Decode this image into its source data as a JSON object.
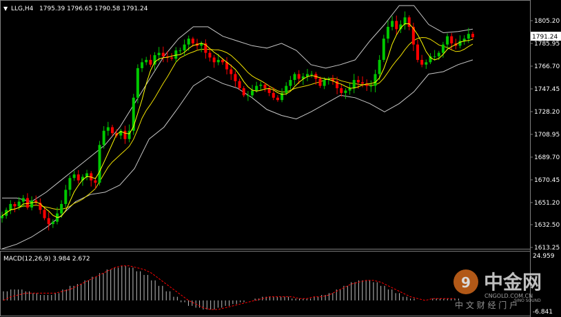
{
  "header": {
    "symbol_label": "LLG,H4",
    "ohlc_label": "1795.39 1796.65 1790.58 1791.24"
  },
  "macd_panel": {
    "label": "MACD(12,26,9) 3.984 2.672",
    "top_value": "24.959",
    "bottom_value": "-6.841"
  },
  "current_price_label": "1791.24",
  "watermark": {
    "brand": "中金网",
    "domain": "CNGOLD.COM.CN",
    "slogan": "中 文 财 经 门 户",
    "sub": "SINO SOUND"
  },
  "colors": {
    "background": "#000000",
    "up_candle": "#00c800",
    "down_candle": "#ff0000",
    "bollinger": "#c8c8c8",
    "moving_average": "#ffff00",
    "macd_histogram": "#c0c0c0",
    "macd_signal": "#ff0000",
    "axis_text": "#ffffff"
  },
  "chart_data": {
    "type": "candlestick",
    "timeframe": "H4",
    "price_axis": {
      "ticks": [
        1805.2,
        1785.95,
        1766.7,
        1747.45,
        1728.2,
        1708.95,
        1689.7,
        1670.45,
        1651.2,
        1632.5,
        1613.25
      ],
      "range": [
        1613.25,
        1820
      ]
    },
    "close_series": [
      1640,
      1645,
      1650,
      1648,
      1652,
      1655,
      1647,
      1653,
      1651,
      1645,
      1638,
      1633,
      1635,
      1642,
      1650,
      1662,
      1672,
      1675,
      1670,
      1673,
      1676,
      1670,
      1668,
      1700,
      1712,
      1715,
      1710,
      1708,
      1712,
      1705,
      1712,
      1740,
      1765,
      1770,
      1772,
      1768,
      1776,
      1778,
      1775,
      1774,
      1773,
      1780,
      1780,
      1785,
      1790,
      1786,
      1784,
      1786,
      1778,
      1774,
      1770,
      1772,
      1770,
      1764,
      1760,
      1754,
      1748,
      1742,
      1742,
      1746,
      1750,
      1751,
      1748,
      1744,
      1740,
      1738,
      1744,
      1750,
      1755,
      1760,
      1756,
      1758,
      1760,
      1760,
      1756,
      1750,
      1755,
      1756,
      1754,
      1748,
      1744,
      1746,
      1748,
      1755,
      1753,
      1752,
      1750,
      1750,
      1760,
      1772,
      1790,
      1800,
      1805,
      1798,
      1802,
      1808,
      1800,
      1785,
      1772,
      1768,
      1770,
      1775,
      1775,
      1778,
      1785,
      1792,
      1786,
      1784,
      1788,
      1790,
      1794,
      1791.24
    ],
    "bollinger_upper_series": [
      1655,
      1655,
      1652,
      1660,
      1670,
      1680,
      1690,
      1700,
      1715,
      1735,
      1755,
      1775,
      1790,
      1800,
      1800,
      1792,
      1788,
      1784,
      1782,
      1786,
      1780,
      1768,
      1765,
      1768,
      1772,
      1788,
      1802,
      1818,
      1818,
      1802,
      1795,
      1796,
      1798
    ],
    "bollinger_lower_series": [
      1612,
      1616,
      1622,
      1630,
      1640,
      1652,
      1658,
      1660,
      1666,
      1680,
      1705,
      1715,
      1732,
      1750,
      1758,
      1752,
      1748,
      1740,
      1730,
      1725,
      1722,
      1728,
      1735,
      1742,
      1740,
      1735,
      1728,
      1735,
      1745,
      1760,
      1762,
      1768,
      1772
    ],
    "macd_histogram_series": [
      5,
      6,
      6,
      5,
      4,
      3,
      3,
      4,
      6,
      8,
      9,
      11,
      13,
      15,
      17,
      18,
      19,
      18,
      16,
      14,
      11,
      8,
      5,
      2,
      -1,
      -3,
      -4,
      -5,
      -5,
      -4,
      -3,
      -2,
      -1,
      0,
      1,
      2,
      2,
      2,
      2,
      1,
      1,
      1,
      2,
      3,
      4,
      6,
      8,
      10,
      11,
      11,
      10,
      8,
      6,
      4,
      2,
      1,
      0,
      0,
      1,
      1,
      1,
      1
    ],
    "macd_signal_series": [
      0,
      2,
      3,
      4,
      4,
      4,
      4,
      4,
      5,
      6,
      8,
      10,
      12,
      14,
      16,
      18,
      19,
      19,
      18,
      17,
      15,
      12,
      9,
      6,
      3,
      0,
      -2,
      -4,
      -5,
      -5,
      -4,
      -3,
      -2,
      -1,
      0,
      1,
      2,
      2,
      2,
      2,
      1,
      1,
      2,
      2,
      3,
      5,
      7,
      9,
      10,
      11,
      11,
      10,
      8,
      6,
      4,
      2,
      1,
      0,
      1,
      1,
      1,
      1
    ],
    "macd_axis_range": [
      -6.841,
      24.959
    ]
  }
}
